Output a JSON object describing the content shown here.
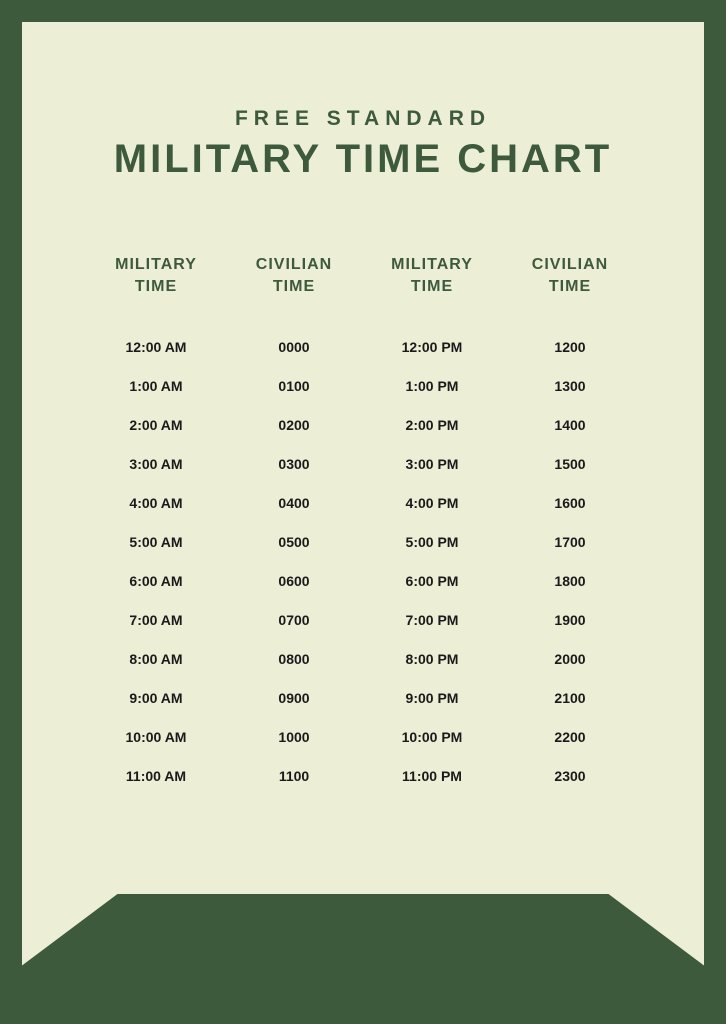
{
  "header": {
    "subtitle": "FREE STANDARD",
    "title": "MILITARY TIME CHART"
  },
  "columns": [
    {
      "header": "MILITARY\nTIME"
    },
    {
      "header": "CIVILIAN\nTIME"
    },
    {
      "header": "MILITARY\nTIME"
    },
    {
      "header": "CIVILIAN\nTIME"
    }
  ],
  "rows": [
    [
      "12:00 AM",
      "0000",
      "12:00 PM",
      "1200"
    ],
    [
      "1:00 AM",
      "0100",
      "1:00 PM",
      "1300"
    ],
    [
      "2:00 AM",
      "0200",
      "2:00 PM",
      "1400"
    ],
    [
      "3:00 AM",
      "0300",
      "3:00 PM",
      "1500"
    ],
    [
      "4:00 AM",
      "0400",
      "4:00 PM",
      "1600"
    ],
    [
      "5:00 AM",
      "0500",
      "5:00 PM",
      "1700"
    ],
    [
      "6:00 AM",
      "0600",
      "6:00 PM",
      "1800"
    ],
    [
      "7:00 AM",
      "0700",
      "7:00 PM",
      "1900"
    ],
    [
      "8:00 AM",
      "0800",
      "8:00 PM",
      "2000"
    ],
    [
      "9:00 AM",
      "0900",
      "9:00 PM",
      "2100"
    ],
    [
      "10:00 AM",
      "1000",
      "10:00 PM",
      "2200"
    ],
    [
      "11:00 AM",
      "1100",
      "11:00 PM",
      "2300"
    ]
  ],
  "colors": {
    "border": "#3d5a3d",
    "page_bg": "#edeed6",
    "heading": "#3d5a3d",
    "text": "#1a1a1a"
  }
}
